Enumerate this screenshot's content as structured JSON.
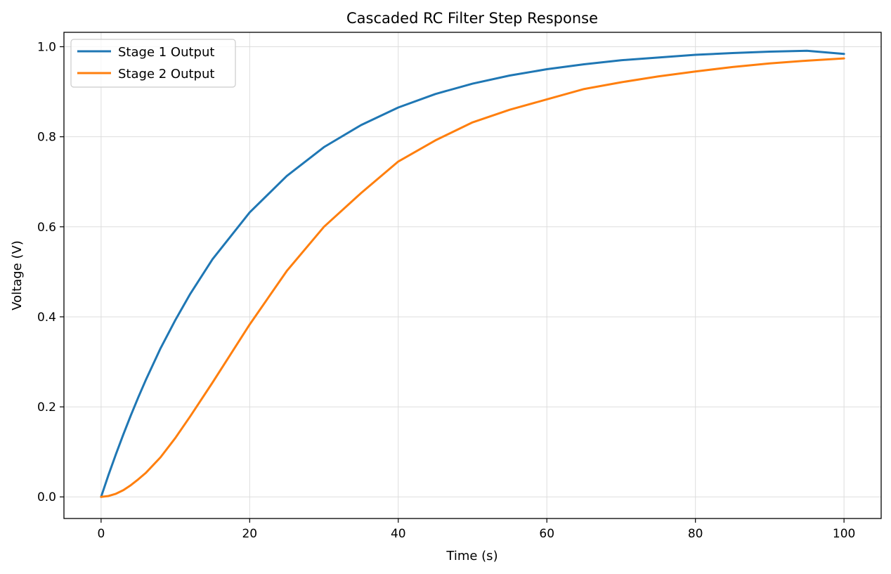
{
  "chart_data": {
    "type": "line",
    "title": "Cascaded RC Filter Step Response",
    "xlabel": "Time (s)",
    "ylabel": "Voltage (V)",
    "xlim": [
      -5,
      105
    ],
    "ylim": [
      -0.048,
      1.032
    ],
    "x_ticks": [
      0,
      20,
      40,
      60,
      80,
      100
    ],
    "y_ticks": [
      0.0,
      0.2,
      0.4,
      0.6,
      0.8,
      1.0
    ],
    "x_tick_labels": [
      "0",
      "20",
      "40",
      "60",
      "80",
      "100"
    ],
    "y_tick_labels": [
      "0.0",
      "0.2",
      "0.4",
      "0.6",
      "0.8",
      "1.0"
    ],
    "grid": true,
    "legend_position": "upper-left",
    "x": [
      0,
      1,
      2,
      3,
      4,
      5,
      6,
      8,
      10,
      12,
      15,
      20,
      25,
      30,
      35,
      40,
      45,
      50,
      55,
      60,
      65,
      70,
      75,
      80,
      85,
      90,
      95,
      100
    ],
    "series": [
      {
        "name": "Stage 1 Output",
        "color": "#1f77b4",
        "values": [
          0.0,
          0.049,
          0.095,
          0.139,
          0.181,
          0.221,
          0.259,
          0.33,
          0.393,
          0.451,
          0.528,
          0.632,
          0.713,
          0.777,
          0.826,
          0.865,
          0.895,
          0.918,
          0.936,
          0.95,
          0.961,
          0.97,
          0.976,
          0.982,
          0.986,
          0.989,
          0.991,
          0.984
        ]
      },
      {
        "name": "Stage 2 Output",
        "color": "#ff7f0e",
        "values": [
          0.0,
          0.002,
          0.007,
          0.015,
          0.026,
          0.039,
          0.053,
          0.088,
          0.131,
          0.179,
          0.254,
          0.383,
          0.502,
          0.6,
          0.675,
          0.745,
          0.792,
          0.832,
          0.86,
          0.883,
          0.906,
          0.921,
          0.934,
          0.945,
          0.955,
          0.963,
          0.969,
          0.974
        ]
      }
    ]
  }
}
